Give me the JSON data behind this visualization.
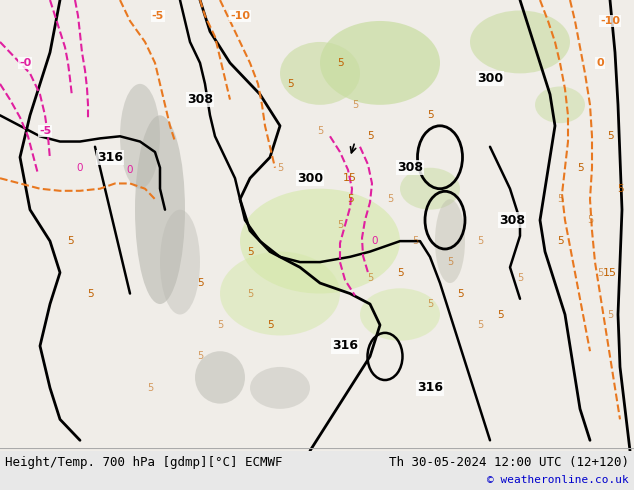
{
  "title_left": "Height/Temp. 700 hPa [gdmp][°C] ECMWF",
  "title_right": "Th 30-05-2024 12:00 UTC (12+120)",
  "copyright": "© weatheronline.co.uk",
  "bg_color": "#e8e8e8",
  "map_bg": "#f0f0f0",
  "land_color": "#f0f0f0",
  "water_color": "#c8d8e8",
  "fig_width": 6.34,
  "fig_height": 4.9,
  "dpi": 100,
  "bottom_bar_color": "#ffffff",
  "bottom_text_color": "#000000",
  "copyright_color": "#0000cc",
  "font_size_bottom": 9,
  "font_size_copyright": 8
}
